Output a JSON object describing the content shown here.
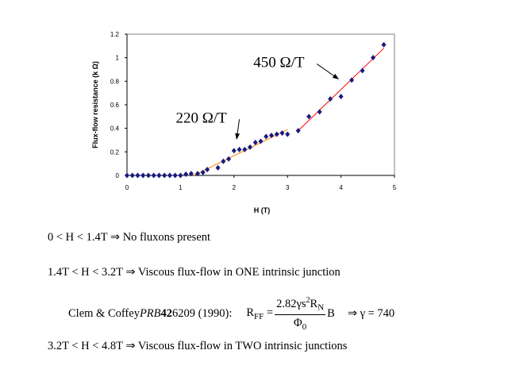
{
  "chart_data": {
    "type": "scatter",
    "title": "",
    "xlabel": "H  (T)",
    "ylabel": "Flux-flow resistance (k   Ω)",
    "xlim": [
      0,
      5
    ],
    "ylim": [
      0,
      1.2
    ],
    "xticks": [
      "0",
      "1",
      "2",
      "3",
      "4",
      "5"
    ],
    "yticks": [
      "0",
      "0.2",
      "0.4",
      "0.6",
      "0.8",
      "1",
      "1.2"
    ],
    "series": [
      {
        "name": "data",
        "color": "#1a1a80",
        "x": [
          0,
          0.1,
          0.2,
          0.3,
          0.4,
          0.5,
          0.6,
          0.7,
          0.8,
          0.9,
          1.0,
          1.1,
          1.2,
          1.32,
          1.42,
          1.5,
          1.7,
          1.8,
          1.9,
          2.0,
          2.1,
          2.2,
          2.3,
          2.4,
          2.5,
          2.6,
          2.7,
          2.8,
          2.9,
          3.0,
          3.2,
          3.4,
          3.6,
          3.8,
          4.0,
          4.2,
          4.4,
          4.6,
          4.8
        ],
        "y": [
          0,
          0,
          0,
          0,
          0,
          0,
          0,
          0,
          0,
          0,
          0,
          0.01,
          0.015,
          0.015,
          0.025,
          0.05,
          0.065,
          0.12,
          0.14,
          0.21,
          0.22,
          0.22,
          0.24,
          0.28,
          0.29,
          0.33,
          0.34,
          0.35,
          0.36,
          0.35,
          0.38,
          0.5,
          0.54,
          0.65,
          0.67,
          0.81,
          0.89,
          1.0,
          1.11
        ]
      }
    ],
    "fits": [
      {
        "name": "fit-220",
        "color": "#ff8000",
        "x": [
          1.25,
          3.0
        ],
        "y": [
          0,
          0.39
        ]
      },
      {
        "name": "fit-450",
        "color": "#ff0000",
        "x": [
          3.2,
          4.8
        ],
        "y": [
          0.38,
          1.08
        ]
      }
    ],
    "annotations": [
      {
        "text": "220 Ω/T",
        "x": 2.1,
        "y": 0.45,
        "arrow_to": [
          2.05,
          0.31
        ]
      },
      {
        "text": "450 Ω/T",
        "x": 3.55,
        "y": 0.92,
        "arrow_to": [
          3.95,
          0.82
        ]
      }
    ],
    "grid": false,
    "legend": "none"
  },
  "notes": {
    "line1": "0 < H < 1.4T ⇒ No fluxons present",
    "line2": "1.4T < H < 3.2T ⇒ Viscous flux-flow in ONE intrinsic junction",
    "clem_ref": "Clem & Coffey ",
    "clem_journal": "PRB",
    "clem_vol": " 42",
    "clem_rest": " 6209 (1990):",
    "eq_lhs": "R",
    "eq_lhs_sub": "FF",
    "eq_eq": " = ",
    "eq_num": "2.82γs",
    "eq_num_sup": "2",
    "eq_num_r": "R",
    "eq_num_sub": "N",
    "eq_den": "Φ",
    "eq_den_sub": "0",
    "eq_b": "B",
    "eq_result": "⇒ γ = 740",
    "line4": "3.2T < H < 4.8T ⇒ Viscous flux-flow in TWO intrinsic junctions"
  }
}
